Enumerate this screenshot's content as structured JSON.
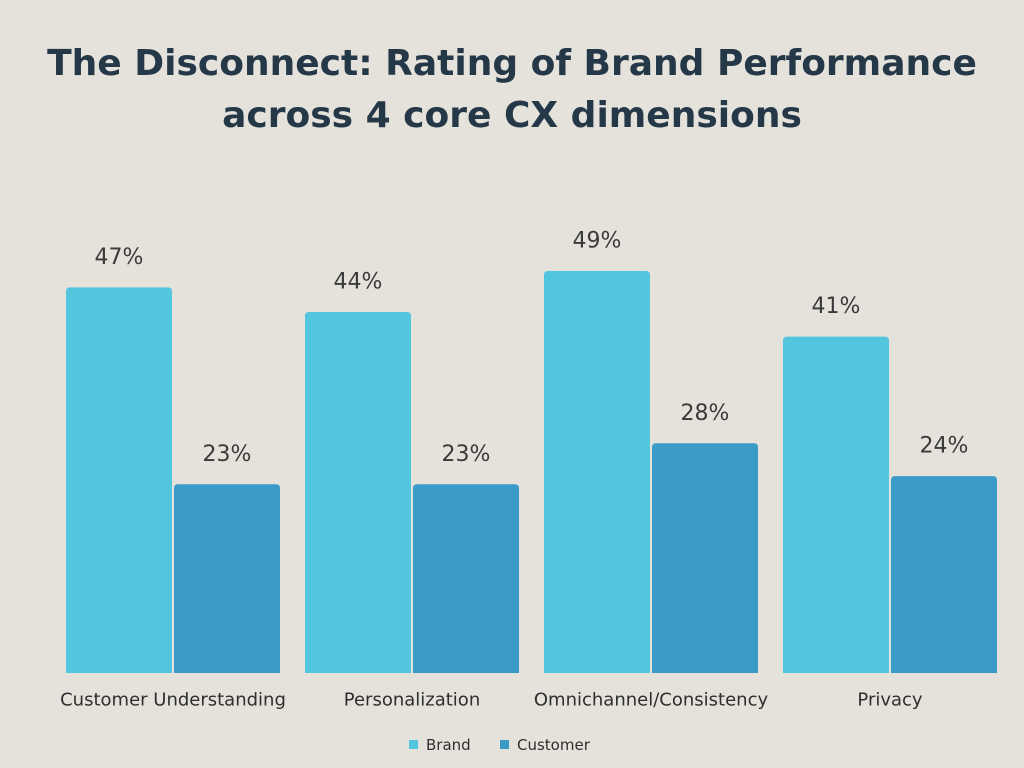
{
  "chart_data": {
    "type": "bar",
    "title_line1": "The Disconnect: Rating of Brand Performance",
    "title_line2": "across 4 core CX dimensions",
    "categories": [
      "Customer Understanding",
      "Personalization",
      "Omnichannel/Consistency",
      "Privacy"
    ],
    "series": [
      {
        "name": "Brand",
        "values": [
          47,
          44,
          49,
          41
        ],
        "labels": [
          "47%",
          "44%",
          "49%",
          "41%"
        ],
        "color": "#52c6df"
      },
      {
        "name": "Customer",
        "values": [
          23,
          23,
          28,
          24
        ],
        "labels": [
          "23%",
          "23%",
          "28%",
          "24%"
        ],
        "color": "#3a9ac8"
      }
    ],
    "ylim": [
      0,
      49
    ],
    "xlabel": "",
    "ylabel": "",
    "grid": false,
    "legend": "bottom-center"
  }
}
